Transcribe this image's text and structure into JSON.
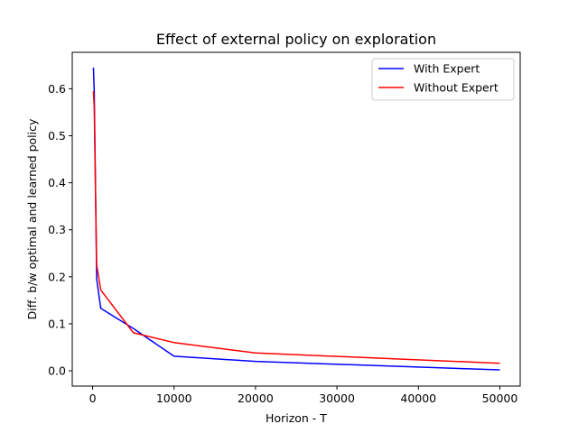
{
  "chart_data": {
    "type": "line",
    "title": "Effect of external policy on exploration",
    "xlabel": "Horizon - T",
    "ylabel": "Diff. b/w optimal and learned policy",
    "xlim": [
      -2500,
      52500
    ],
    "ylim": [
      -0.0325,
      0.6775
    ],
    "xticks": [
      0,
      10000,
      20000,
      30000,
      40000,
      50000
    ],
    "xtick_labels": [
      "0",
      "10000",
      "20000",
      "30000",
      "40000",
      "50000"
    ],
    "yticks": [
      0.0,
      0.1,
      0.2,
      0.3,
      0.4,
      0.5,
      0.6
    ],
    "ytick_labels": [
      "0.0",
      "0.1",
      "0.2",
      "0.3",
      "0.4",
      "0.5",
      "0.6"
    ],
    "grid": false,
    "legend_position": "top-right",
    "series": [
      {
        "name": "With Expert",
        "color": "#0000ff",
        "x": [
          100,
          200,
          500,
          1000,
          5000,
          10000,
          20000,
          50000
        ],
        "y": [
          0.645,
          0.595,
          0.195,
          0.133,
          0.09,
          0.031,
          0.02,
          0.002
        ]
      },
      {
        "name": "Without Expert",
        "color": "#ff0000",
        "x": [
          100,
          200,
          500,
          1000,
          5000,
          10000,
          20000,
          50000
        ],
        "y": [
          0.595,
          0.56,
          0.225,
          0.172,
          0.081,
          0.06,
          0.038,
          0.016
        ]
      }
    ]
  }
}
